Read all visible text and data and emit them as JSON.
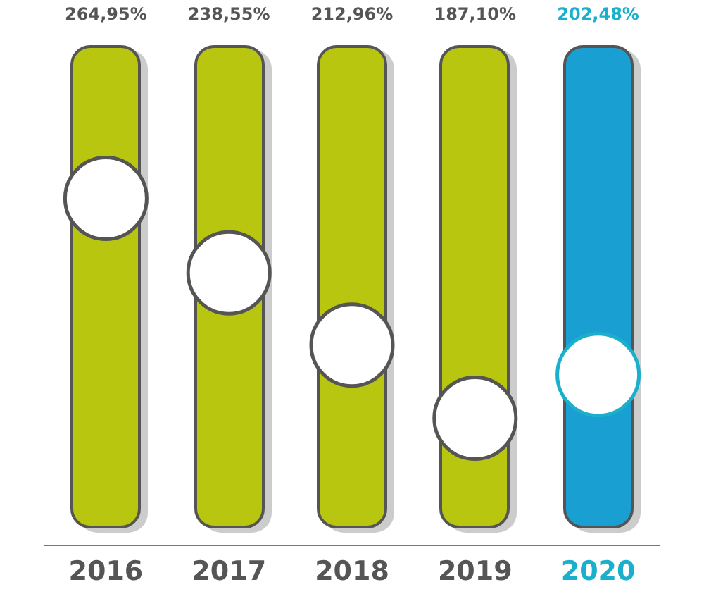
{
  "chart_data": {
    "type": "scatter",
    "marker": "circle",
    "categories": [
      "2016",
      "2017",
      "2018",
      "2019",
      "2020"
    ],
    "values": [
      264.95,
      238.55,
      212.96,
      187.1,
      202.48
    ],
    "value_labels": [
      "264,95%",
      "238,55%",
      "212,96%",
      "187,10%",
      "202,48%"
    ],
    "colors": [
      "#ffffff",
      "#ffffff",
      "#ffffff",
      "#ffffff",
      "#ffffff"
    ]
  }
}
